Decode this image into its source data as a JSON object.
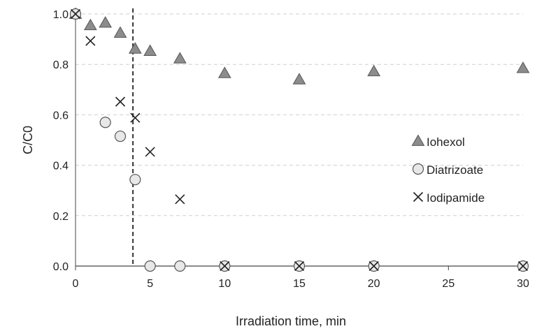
{
  "chart_data": {
    "type": "scatter",
    "xlabel": "Irradiation time, min",
    "ylabel": "C/C0",
    "xlim": [
      0,
      30
    ],
    "ylim": [
      0,
      1.0
    ],
    "x_ticks": [
      "0",
      "5",
      "10",
      "15",
      "20",
      "25",
      "30"
    ],
    "y_ticks": [
      "0.0",
      "0.2",
      "0.4",
      "0.6",
      "0.8",
      "1.0"
    ],
    "grid": "horizontal dashed",
    "legend_position": "right",
    "reference_line": {
      "x": 3.85,
      "style": "dashed vertical"
    },
    "series": [
      {
        "name": "Iohexol",
        "marker": "triangle",
        "color": "#8c8c8c",
        "points": [
          [
            0,
            1.0
          ],
          [
            1,
            0.955
          ],
          [
            2,
            0.965
          ],
          [
            3,
            0.925
          ],
          [
            4,
            0.862
          ],
          [
            5,
            0.853
          ],
          [
            7,
            0.823
          ],
          [
            10,
            0.765
          ],
          [
            15,
            0.74
          ],
          [
            20,
            0.772
          ],
          [
            30,
            0.785
          ]
        ]
      },
      {
        "name": "Diatrizoate",
        "marker": "circle",
        "color": "#e8e8e8",
        "points": [
          [
            0,
            1.0
          ],
          [
            2,
            0.57
          ],
          [
            3,
            0.515
          ],
          [
            4,
            0.343
          ],
          [
            5,
            0.0
          ],
          [
            7,
            0.0
          ],
          [
            10,
            0.0
          ],
          [
            15,
            0.0
          ],
          [
            20,
            0.0
          ],
          [
            30,
            0.0
          ]
        ]
      },
      {
        "name": "Iodipamide",
        "marker": "x",
        "color": "#222222",
        "points": [
          [
            0,
            1.0
          ],
          [
            1,
            0.893
          ],
          [
            3,
            0.652
          ],
          [
            4,
            0.588
          ],
          [
            5,
            0.453
          ],
          [
            7,
            0.265
          ],
          [
            10,
            0.0
          ],
          [
            15,
            0.0
          ],
          [
            20,
            0.0
          ],
          [
            30,
            0.0
          ]
        ]
      }
    ]
  }
}
